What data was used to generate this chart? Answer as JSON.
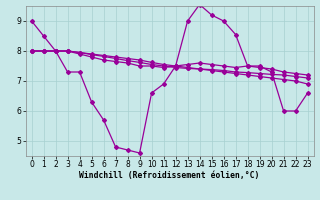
{
  "bg_color": "#c8e8e8",
  "grid_color": "#a8d0d0",
  "line_color": "#990099",
  "marker": "D",
  "markersize": 2.0,
  "linewidth": 0.9,
  "xlabel": "Windchill (Refroidissement éolien,°C)",
  "xlabel_fontsize": 5.8,
  "tick_fontsize": 5.5,
  "xlim": [
    -0.5,
    23.5
  ],
  "ylim": [
    4.5,
    9.5
  ],
  "yticks": [
    5,
    6,
    7,
    8,
    9
  ],
  "xticks": [
    0,
    1,
    2,
    3,
    4,
    5,
    6,
    7,
    8,
    9,
    10,
    11,
    12,
    13,
    14,
    15,
    16,
    17,
    18,
    19,
    20,
    21,
    22,
    23
  ],
  "series": [
    [
      9.0,
      8.5,
      8.0,
      7.3,
      7.3,
      6.3,
      5.7,
      4.8,
      4.7,
      4.6,
      6.6,
      6.9,
      7.5,
      9.0,
      9.55,
      9.2,
      9.0,
      8.55,
      7.5,
      7.5,
      7.3,
      6.0,
      6.0,
      6.6
    ],
    [
      8.0,
      8.0,
      8.0,
      8.0,
      7.9,
      7.8,
      7.7,
      7.65,
      7.6,
      7.5,
      7.5,
      7.45,
      7.5,
      7.55,
      7.6,
      7.55,
      7.5,
      7.45,
      7.5,
      7.45,
      7.4,
      7.3,
      7.25,
      7.2
    ],
    [
      8.0,
      8.0,
      8.0,
      8.0,
      7.95,
      7.88,
      7.82,
      7.75,
      7.68,
      7.62,
      7.55,
      7.5,
      7.45,
      7.42,
      7.4,
      7.38,
      7.35,
      7.3,
      7.28,
      7.25,
      7.22,
      7.2,
      7.15,
      7.1
    ],
    [
      8.0,
      8.0,
      8.0,
      8.0,
      7.95,
      7.9,
      7.85,
      7.8,
      7.75,
      7.7,
      7.62,
      7.55,
      7.5,
      7.45,
      7.4,
      7.35,
      7.3,
      7.25,
      7.2,
      7.15,
      7.1,
      7.05,
      7.0,
      6.9
    ]
  ]
}
